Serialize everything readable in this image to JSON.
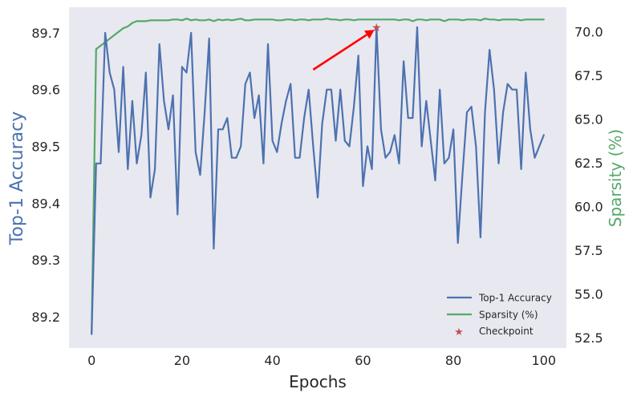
{
  "chart_data": {
    "type": "line",
    "xlabel": "Epochs",
    "ylabel_left": "Top-1 Accuracy",
    "ylabel_right": "Sparsity (%)",
    "xlim": [
      -5,
      105
    ],
    "ylim_left": [
      89.145,
      89.745
    ],
    "ylim_right": [
      51.9,
      71.4
    ],
    "x_ticks": [
      0,
      20,
      40,
      60,
      80,
      100
    ],
    "y_ticks_left": [
      89.2,
      89.3,
      89.4,
      89.5,
      89.6,
      89.7
    ],
    "y_ticks_right": [
      52.5,
      55.0,
      57.5,
      60.0,
      62.5,
      65.0,
      67.5,
      70.0
    ],
    "grid": false,
    "legend_position": "lower-right",
    "colors": {
      "background": "#e8e8f0",
      "accuracy": "#4c72b0",
      "sparsity": "#55a868",
      "checkpoint": "#c44e52",
      "arrow": "#ff0000",
      "text": "#262626"
    },
    "series": [
      {
        "name": "Top-1 Accuracy",
        "axis": "left",
        "x": [
          0,
          1,
          2,
          3,
          4,
          5,
          6,
          7,
          8,
          9,
          10,
          11,
          12,
          13,
          14,
          15,
          16,
          17,
          18,
          19,
          20,
          21,
          22,
          23,
          24,
          25,
          26,
          27,
          28,
          29,
          30,
          31,
          32,
          33,
          34,
          35,
          36,
          37,
          38,
          39,
          40,
          41,
          42,
          43,
          44,
          45,
          46,
          47,
          48,
          49,
          50,
          51,
          52,
          53,
          54,
          55,
          56,
          57,
          58,
          59,
          60,
          61,
          62,
          63,
          64,
          65,
          66,
          67,
          68,
          69,
          70,
          71,
          72,
          73,
          74,
          75,
          76,
          77,
          78,
          79,
          80,
          81,
          82,
          83,
          84,
          85,
          86,
          87,
          88,
          89,
          90,
          91,
          92,
          93,
          94,
          95,
          96,
          97,
          98,
          99,
          100
        ],
        "values": [
          89.17,
          89.47,
          89.47,
          89.7,
          89.63,
          89.6,
          89.49,
          89.64,
          89.46,
          89.58,
          89.47,
          89.52,
          89.63,
          89.41,
          89.46,
          89.68,
          89.58,
          89.53,
          89.59,
          89.38,
          89.64,
          89.63,
          89.7,
          89.49,
          89.45,
          89.56,
          89.69,
          89.32,
          89.53,
          89.53,
          89.55,
          89.48,
          89.48,
          89.5,
          89.61,
          89.63,
          89.55,
          89.59,
          89.47,
          89.68,
          89.51,
          89.49,
          89.54,
          89.58,
          89.61,
          89.48,
          89.48,
          89.55,
          89.6,
          89.5,
          89.41,
          89.54,
          89.6,
          89.6,
          89.51,
          89.6,
          89.51,
          89.5,
          89.57,
          89.66,
          89.43,
          89.5,
          89.46,
          89.71,
          89.53,
          89.48,
          89.49,
          89.52,
          89.47,
          89.65,
          89.55,
          89.55,
          89.71,
          89.5,
          89.58,
          89.51,
          89.44,
          89.6,
          89.47,
          89.48,
          89.53,
          89.33,
          89.45,
          89.56,
          89.57,
          89.5,
          89.34,
          89.56,
          89.67,
          89.6,
          89.47,
          89.56,
          89.61,
          89.6,
          89.6,
          89.46,
          89.63,
          89.53,
          89.48,
          89.5,
          89.52
        ]
      },
      {
        "name": "Sparsity (%)",
        "axis": "right",
        "x": [
          0,
          1,
          2,
          3,
          4,
          5,
          6,
          7,
          8,
          9,
          10,
          11,
          12,
          13,
          14,
          15,
          16,
          17,
          18,
          19,
          20,
          21,
          22,
          23,
          24,
          25,
          26,
          27,
          28,
          29,
          30,
          31,
          32,
          33,
          34,
          35,
          36,
          37,
          38,
          39,
          40,
          41,
          42,
          43,
          44,
          45,
          46,
          47,
          48,
          49,
          50,
          51,
          52,
          53,
          54,
          55,
          56,
          57,
          58,
          59,
          60,
          61,
          62,
          63,
          64,
          65,
          66,
          67,
          68,
          69,
          70,
          71,
          72,
          73,
          74,
          75,
          76,
          77,
          78,
          79,
          80,
          81,
          82,
          83,
          84,
          85,
          86,
          87,
          88,
          89,
          90,
          91,
          92,
          93,
          94,
          95,
          96,
          97,
          98,
          99,
          100
        ],
        "values": [
          52.7,
          69.0,
          69.2,
          69.4,
          69.6,
          69.8,
          70.0,
          70.2,
          70.3,
          70.5,
          70.6,
          70.6,
          70.6,
          70.65,
          70.65,
          70.65,
          70.65,
          70.65,
          70.7,
          70.7,
          70.65,
          70.75,
          70.65,
          70.7,
          70.65,
          70.65,
          70.7,
          70.6,
          70.7,
          70.65,
          70.7,
          70.65,
          70.7,
          70.75,
          70.65,
          70.65,
          70.7,
          70.7,
          70.7,
          70.7,
          70.7,
          70.65,
          70.65,
          70.7,
          70.7,
          70.65,
          70.7,
          70.7,
          70.65,
          70.7,
          70.7,
          70.7,
          70.75,
          70.7,
          70.7,
          70.65,
          70.7,
          70.7,
          70.65,
          70.7,
          70.7,
          70.7,
          70.7,
          70.7,
          70.7,
          70.7,
          70.7,
          70.7,
          70.65,
          70.7,
          70.7,
          70.6,
          70.7,
          70.7,
          70.65,
          70.7,
          70.7,
          70.7,
          70.6,
          70.7,
          70.7,
          70.7,
          70.65,
          70.7,
          70.7,
          70.7,
          70.65,
          70.75,
          70.7,
          70.7,
          70.65,
          70.7,
          70.7,
          70.7,
          70.7,
          70.65,
          70.7,
          70.7,
          70.7,
          70.7,
          70.7
        ]
      }
    ],
    "checkpoint": {
      "name": "Checkpoint",
      "x": 63,
      "y": 89.71,
      "axis": "left"
    },
    "annotation_arrow": {
      "from": [
        49,
        89.635
      ],
      "to": [
        62.5,
        89.705
      ],
      "axis": "left"
    }
  }
}
